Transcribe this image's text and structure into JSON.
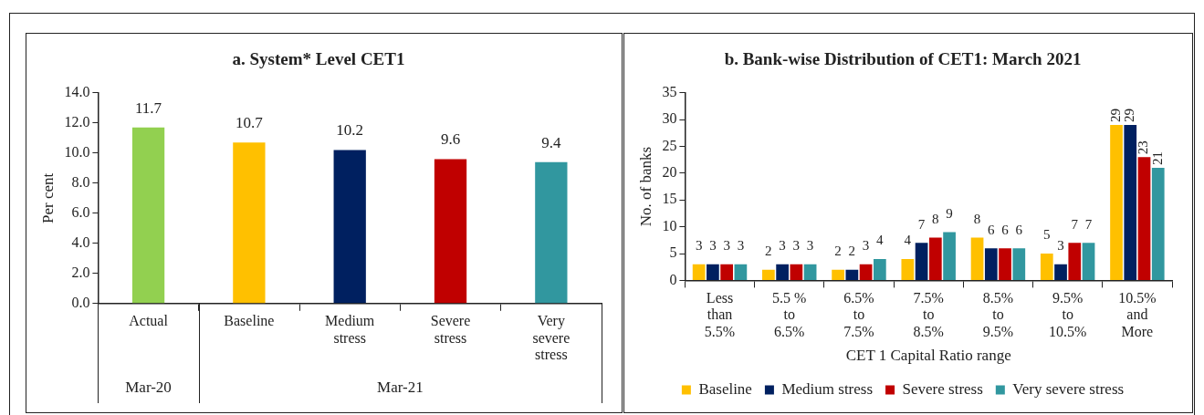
{
  "chart_data": [
    {
      "type": "bar",
      "title": "a. System* Level CET1",
      "ylabel": "Per cent",
      "categories": [
        "Actual",
        "Baseline",
        "Medium stress",
        "Severe stress",
        "Very severe stress"
      ],
      "values": [
        11.7,
        10.7,
        10.2,
        9.6,
        9.4
      ],
      "colors": [
        "#92d050",
        "#ffc000",
        "#002060",
        "#c00000",
        "#31979f"
      ],
      "ylim": [
        0,
        14
      ],
      "yticks": [
        {
          "value": 0,
          "label": "0.0"
        },
        {
          "value": 2,
          "label": "2.0"
        },
        {
          "value": 4,
          "label": "4.0"
        },
        {
          "value": 6,
          "label": "6.0"
        },
        {
          "value": 8,
          "label": "8.0"
        },
        {
          "value": 10,
          "label": "10.0"
        },
        {
          "value": 12,
          "label": "12.0"
        },
        {
          "value": 14,
          "label": "14.0"
        }
      ],
      "data_labels": true,
      "annotations": [
        "Mar-20",
        "Mar-21"
      ]
    },
    {
      "type": "bar",
      "title": "b. Bank-wise Distribution of CET1: March 2021",
      "xlabel": "CET 1 Capital Ratio range",
      "ylabel": "No. of banks",
      "categories": [
        "Less than 5.5%",
        "5.5 % to 6.5%",
        "6.5% to 7.5%",
        "7.5% to 8.5%",
        "8.5% to 9.5%",
        "9.5% to 10.5%",
        "10.5% and More"
      ],
      "series": [
        {
          "name": "Baseline",
          "color": "#ffc000",
          "values": [
            3,
            2,
            2,
            4,
            8,
            5,
            29
          ]
        },
        {
          "name": "Medium stress",
          "color": "#002060",
          "values": [
            3,
            3,
            2,
            7,
            6,
            3,
            29
          ]
        },
        {
          "name": "Severe stress",
          "color": "#c00000",
          "values": [
            3,
            3,
            3,
            8,
            6,
            7,
            23
          ]
        },
        {
          "name": "Very severe stress",
          "color": "#31979f",
          "values": [
            3,
            3,
            4,
            9,
            6,
            7,
            21
          ]
        }
      ],
      "ylim": [
        0,
        35
      ],
      "yticks": [
        0,
        5,
        10,
        15,
        20,
        25,
        30,
        35
      ],
      "data_labels": true,
      "legend": "bottom"
    }
  ]
}
